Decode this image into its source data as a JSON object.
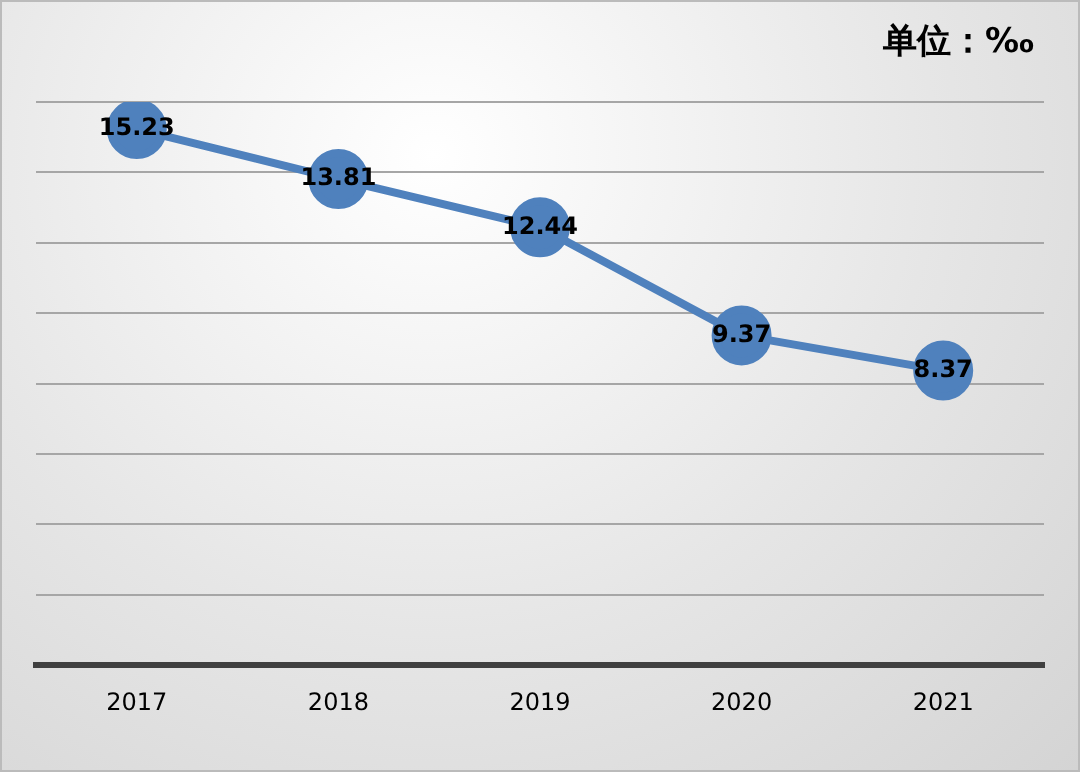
{
  "chart_data": {
    "type": "line",
    "categories": [
      "2017",
      "2018",
      "2019",
      "2020",
      "2021"
    ],
    "series": [
      {
        "color": "#4f81bd",
        "values": [
          15.23,
          13.81,
          12.44,
          9.37,
          8.37
        ]
      }
    ],
    "ylim": [
      0,
      16
    ],
    "yticks": [
      {
        "value": 0,
        "label": null
      },
      {
        "value": 2,
        "label": null
      },
      {
        "value": 4,
        "label": null
      },
      {
        "value": 6,
        "label": null
      },
      {
        "value": 8,
        "label": null
      },
      {
        "value": 10,
        "label": null
      },
      {
        "value": 12,
        "label": null
      },
      {
        "value": 14,
        "label": null
      },
      {
        "value": 16,
        "label": null
      }
    ],
    "tick_labels": "x",
    "grid": "y",
    "legend": false,
    "marker": "circle",
    "line_style": "solid",
    "data_labels": true,
    "annotations": [
      "单位：‰"
    ]
  }
}
